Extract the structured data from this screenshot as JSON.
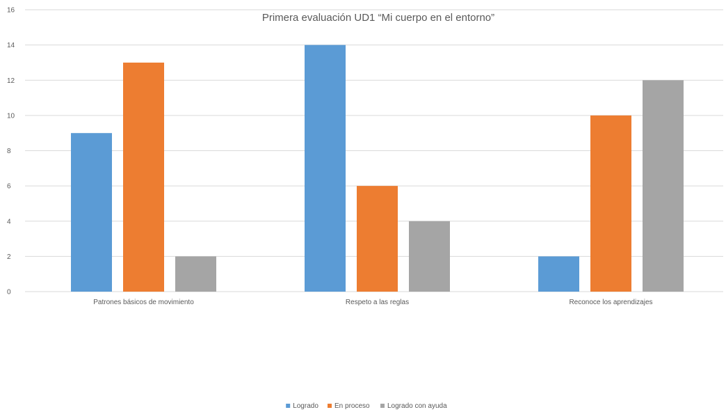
{
  "chart_data": {
    "type": "bar",
    "title": "Primera evaluación UD1 “Mi cuerpo en el entorno”",
    "xlabel": "",
    "ylabel": "",
    "categories": [
      "Patrones básicos de movimiento",
      "Respeto a las reglas",
      "Reconoce los aprendizajes"
    ],
    "series": [
      {
        "name": "Logrado",
        "color": "#5b9bd5",
        "values": [
          9,
          14,
          2
        ]
      },
      {
        "name": "En proceso",
        "color": "#ed7d31",
        "values": [
          13,
          6,
          10
        ]
      },
      {
        "name": "Logrado con ayuda",
        "color": "#a5a5a5",
        "values": [
          2,
          4,
          12
        ]
      }
    ],
    "ylim": [
      0,
      16
    ],
    "yticks": [
      0,
      2,
      4,
      6,
      8,
      10,
      12,
      14,
      16
    ],
    "grid": true,
    "legend_position": "bottom"
  }
}
